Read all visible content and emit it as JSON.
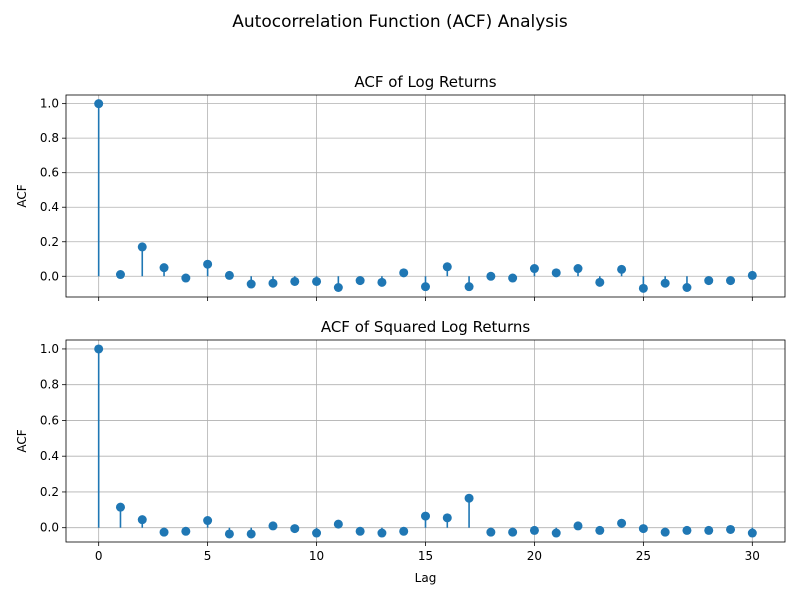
{
  "figure": {
    "suptitle": "Autocorrelation Function (ACF) Analysis"
  },
  "chart_data": [
    {
      "type": "stem",
      "title": "ACF of Log Returns",
      "xlabel": "",
      "ylabel": "ACF",
      "xlim": [
        -1.5,
        31.5
      ],
      "ylim": [
        -0.12,
        1.05
      ],
      "xticks": [
        0,
        5,
        10,
        15,
        20,
        25,
        30
      ],
      "yticks": [
        0.0,
        0.2,
        0.4,
        0.6,
        0.8,
        1.0
      ],
      "ytick_labels": [
        "0.0",
        "0.2",
        "0.4",
        "0.6",
        "0.8",
        "1.0"
      ],
      "show_xtick_labels": false,
      "grid": true,
      "color": "#1f77b4",
      "x": [
        0,
        1,
        2,
        3,
        4,
        5,
        6,
        7,
        8,
        9,
        10,
        11,
        12,
        13,
        14,
        15,
        16,
        17,
        18,
        19,
        20,
        21,
        22,
        23,
        24,
        25,
        26,
        27,
        28,
        29,
        30
      ],
      "values": [
        1.0,
        0.01,
        0.17,
        0.05,
        -0.01,
        0.07,
        0.005,
        -0.045,
        -0.04,
        -0.03,
        -0.03,
        -0.065,
        -0.025,
        -0.035,
        0.02,
        -0.06,
        0.055,
        -0.06,
        0.0,
        -0.01,
        0.045,
        0.02,
        0.045,
        -0.035,
        0.04,
        -0.07,
        -0.04,
        -0.065,
        -0.025,
        -0.025,
        0.005
      ]
    },
    {
      "type": "stem",
      "title": "ACF of Squared Log Returns",
      "xlabel": "Lag",
      "ylabel": "ACF",
      "xlim": [
        -1.5,
        31.5
      ],
      "ylim": [
        -0.08,
        1.05
      ],
      "xticks": [
        0,
        5,
        10,
        15,
        20,
        25,
        30
      ],
      "xtick_labels": [
        "0",
        "5",
        "10",
        "15",
        "20",
        "25",
        "30"
      ],
      "yticks": [
        0.0,
        0.2,
        0.4,
        0.6,
        0.8,
        1.0
      ],
      "ytick_labels": [
        "0.0",
        "0.2",
        "0.4",
        "0.6",
        "0.8",
        "1.0"
      ],
      "show_xtick_labels": true,
      "grid": true,
      "color": "#1f77b4",
      "x": [
        0,
        1,
        2,
        3,
        4,
        5,
        6,
        7,
        8,
        9,
        10,
        11,
        12,
        13,
        14,
        15,
        16,
        17,
        18,
        19,
        20,
        21,
        22,
        23,
        24,
        25,
        26,
        27,
        28,
        29,
        30
      ],
      "values": [
        1.0,
        0.115,
        0.045,
        -0.025,
        -0.02,
        0.04,
        -0.035,
        -0.035,
        0.01,
        -0.005,
        -0.03,
        0.02,
        -0.02,
        -0.03,
        -0.02,
        0.065,
        0.055,
        0.165,
        -0.025,
        -0.025,
        -0.015,
        -0.03,
        0.01,
        -0.015,
        0.025,
        -0.005,
        -0.025,
        -0.015,
        -0.015,
        -0.01,
        -0.03
      ]
    }
  ]
}
